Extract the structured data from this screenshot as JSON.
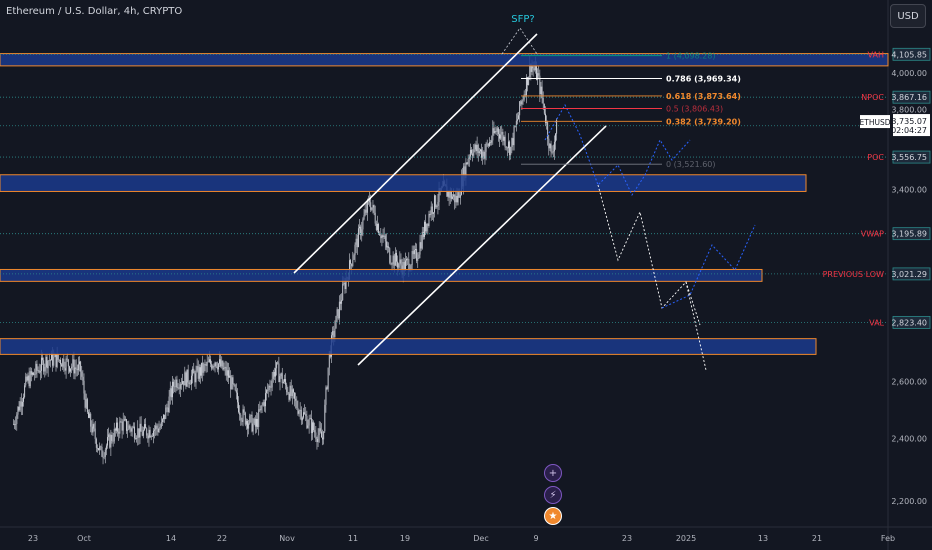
{
  "header": {
    "title": "Ethereum / U.S. Dollar, 4h, CRYPTO",
    "currency": "USD"
  },
  "icons": [
    "plus-icon",
    "lightning-icon",
    "flag-icon"
  ],
  "colors": {
    "background": "#131722",
    "candle": "#d1d4dc",
    "zone_fill": "#1b3a8c",
    "zone_border": "#f0882d",
    "level_line": "#2c8a8a",
    "level_label": "#f23645",
    "axis_text": "#b2b5be",
    "forecast": "#2962ff",
    "channel": "#ffffff",
    "fib_white": "#ffffff",
    "fib_orange": "#f0882d",
    "fib_red": "#f23645",
    "fib_gray": "#787b86",
    "fib_green": "#089981",
    "annotation": "#26c6da"
  },
  "chart_data": {
    "type": "candlestick",
    "symbol": "ETHUSD",
    "interval": "4h",
    "current_price": "3,735.07",
    "countdown": "02:04:27",
    "y_scale": "log",
    "ylim": [
      2100,
      4250
    ],
    "y_ticks": [
      "4,000.00",
      "3,800.00",
      "3,400.00",
      "2,600.00",
      "2,400.00",
      "2,200.00"
    ],
    "x_ticks": [
      "23",
      "Oct",
      "14",
      "22",
      "Nov",
      "11",
      "19",
      "Dec",
      "9",
      "23",
      "2025",
      "13",
      "21",
      "Feb"
    ],
    "price_path": [
      {
        "x": "Sep 20",
        "y": 2450
      },
      {
        "x": "Sep 22",
        "y": 2600
      },
      {
        "x": "Sep 25",
        "y": 2680
      },
      {
        "x": "Sep 27",
        "y": 2680
      },
      {
        "x": "Sep 30",
        "y": 2640
      },
      {
        "x": "Oct 1",
        "y": 2480
      },
      {
        "x": "Oct 3",
        "y": 2350
      },
      {
        "x": "Oct 6",
        "y": 2450
      },
      {
        "x": "Oct 9",
        "y": 2420
      },
      {
        "x": "Oct 12",
        "y": 2440
      },
      {
        "x": "Oct 14",
        "y": 2600
      },
      {
        "x": "Oct 17",
        "y": 2620
      },
      {
        "x": "Oct 20",
        "y": 2680
      },
      {
        "x": "Oct 22",
        "y": 2620
      },
      {
        "x": "Oct 24",
        "y": 2480
      },
      {
        "x": "Oct 26",
        "y": 2440
      },
      {
        "x": "Oct 29",
        "y": 2650
      },
      {
        "x": "Nov 1",
        "y": 2520
      },
      {
        "x": "Nov 4",
        "y": 2420
      },
      {
        "x": "Nov 5",
        "y": 2400
      },
      {
        "x": "Nov 6",
        "y": 2700
      },
      {
        "x": "Nov 8",
        "y": 2950
      },
      {
        "x": "Nov 10",
        "y": 3150
      },
      {
        "x": "Nov 12",
        "y": 3350
      },
      {
        "x": "Nov 13",
        "y": 3250
      },
      {
        "x": "Nov 15",
        "y": 3100
      },
      {
        "x": "Nov 17",
        "y": 3050
      },
      {
        "x": "Nov 19",
        "y": 3100
      },
      {
        "x": "Nov 21",
        "y": 3300
      },
      {
        "x": "Nov 23",
        "y": 3400
      },
      {
        "x": "Nov 25",
        "y": 3350
      },
      {
        "x": "Nov 27",
        "y": 3600
      },
      {
        "x": "Nov 29",
        "y": 3580
      },
      {
        "x": "Dec 1",
        "y": 3700
      },
      {
        "x": "Dec 3",
        "y": 3600
      },
      {
        "x": "Dec 5",
        "y": 3900
      },
      {
        "x": "Dec 6",
        "y": 4050
      },
      {
        "x": "Dec 7",
        "y": 3980
      },
      {
        "x": "Dec 8",
        "y": 3800
      },
      {
        "x": "Dec 9",
        "y": 3560
      },
      {
        "x": "Dec 10",
        "y": 3735
      }
    ],
    "horizontal_levels": [
      {
        "label": "VAH",
        "value": "4,105.85"
      },
      {
        "label": "NPOC",
        "value": "3,867.16"
      },
      {
        "label": "",
        "value": "3,715.83"
      },
      {
        "label": "POC",
        "value": "3,556.75"
      },
      {
        "label": "VWAP",
        "value": "3,195.89"
      },
      {
        "label": "PREVIOUS LOW",
        "value": "3,021.29"
      },
      {
        "label": "VAL",
        "value": "2,823.40"
      }
    ],
    "fib_levels": [
      {
        "label": "1 (4,098.28)"
      },
      {
        "label": "0.786 (3,969.34)"
      },
      {
        "label": "0.618 (3,873.64)"
      },
      {
        "label": "0.5 (3,806.43)"
      },
      {
        "label": "0.382 (3,739.20)"
      },
      {
        "label": "0 (3,521.60)"
      }
    ],
    "annotations": [
      "SFP?"
    ],
    "zones": [
      {
        "from": 4040,
        "to": 4110
      },
      {
        "from": 3390,
        "to": 3470
      },
      {
        "from": 2990,
        "to": 3040
      },
      {
        "from": 2700,
        "to": 2760
      }
    ]
  }
}
